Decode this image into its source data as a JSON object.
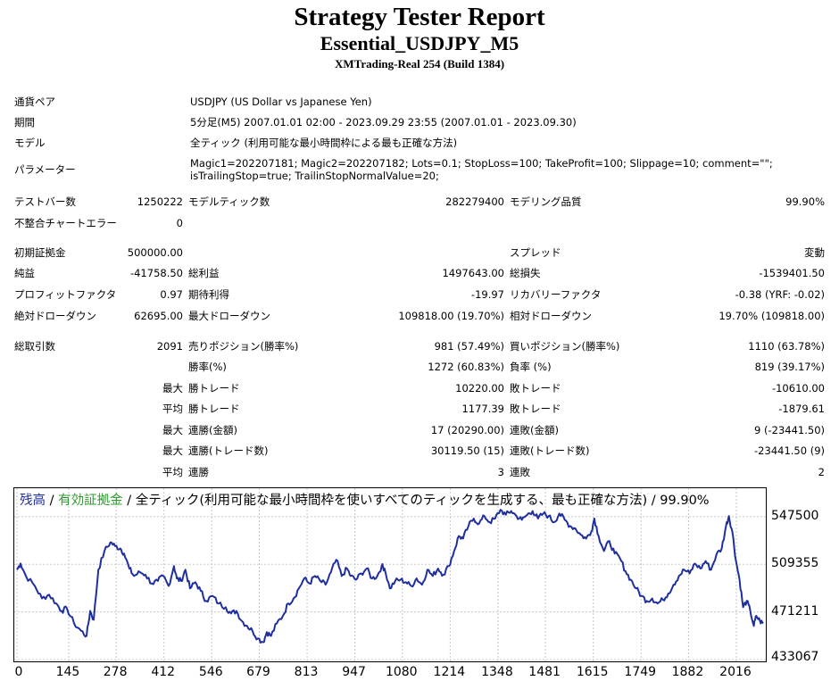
{
  "header": {
    "title": "Strategy Tester Report",
    "subtitle": "Essential_USDJPY_M5",
    "server": "XMTrading-Real 254 (Build 1384)"
  },
  "info": {
    "symbol_label": "通貨ペア",
    "symbol_value": "USDJPY (US Dollar vs Japanese Yen)",
    "period_label": "期間",
    "period_value": "5分足(M5) 2007.01.01 02:00 - 2023.09.29 23:55 (2007.01.01 - 2023.09.30)",
    "model_label": "モデル",
    "model_value": "全ティック (利用可能な最小時間枠による最も正確な方法)",
    "params_label": "パラメーター",
    "params_value": "Magic1=202207181; Magic2=202207182; Lots=0.1; StopLoss=100; TakeProfit=100; Slippage=10; comment=\"\"; isTrailingStop=true; TrailinStopNormalValue=20;"
  },
  "stats": {
    "bars_label": "テストバー数",
    "bars_value": "1250222",
    "ticks_label": "モデルティック数",
    "ticks_value": "282279400",
    "quality_label": "モデリング品質",
    "quality_value": "99.90%",
    "errors_label": "不整合チャートエラー",
    "errors_value": "0",
    "deposit_label": "初期証拠金",
    "deposit_value": "500000.00",
    "spread_label": "スプレッド",
    "spread_value": "変動",
    "net_label": "純益",
    "net_value": "-41758.50",
    "gross_profit_label": "総利益",
    "gross_profit_value": "1497643.00",
    "gross_loss_label": "総損失",
    "gross_loss_value": "-1539401.50",
    "pf_label": "プロフィットファクタ",
    "pf_value": "0.97",
    "expected_label": "期待利得",
    "expected_value": "-19.97",
    "recovery_label": "リカバリーファクタ",
    "recovery_value": "-0.38 (YRF: -0.02)",
    "abs_dd_label": "絶対ドローダウン",
    "abs_dd_value": "62695.00",
    "max_dd_label": "最大ドローダウン",
    "max_dd_value": "109818.00 (19.70%)",
    "rel_dd_label": "相対ドローダウン",
    "rel_dd_value": "19.70% (109818.00)",
    "trades_label": "総取引数",
    "trades_value": "2091",
    "short_label": "売りポジション(勝率%)",
    "short_value": "981 (57.49%)",
    "long_label": "買いポジション(勝率%)",
    "long_value": "1110 (63.78%)",
    "win_rate_label": "勝率(%)",
    "win_rate_value": "1272 (60.83%)",
    "loss_rate_label": "負率 (%)",
    "loss_rate_value": "819 (39.17%)",
    "max_prefix": "最大",
    "avg_prefix": "平均",
    "max_win_label": "勝トレード",
    "max_win_value": "10220.00",
    "max_loss_label": "敗トレード",
    "max_loss_value": "-10610.00",
    "avg_win_label": "勝トレード",
    "avg_win_value": "1177.39",
    "avg_loss_label": "敗トレード",
    "avg_loss_value": "-1879.61",
    "cons_wins_money_label": "連勝(金額)",
    "cons_wins_money_value": "17 (20290.00)",
    "cons_loss_money_label": "連敗(金額)",
    "cons_loss_money_value": "9 (-23441.50)",
    "cons_profit_label": "連勝(トレード数)",
    "cons_profit_value": "30119.50 (15)",
    "cons_loss_trades_label": "連敗(トレード数)",
    "cons_loss_trades_value": "-23441.50 (9)",
    "avg_cons_wins_label": "連勝",
    "avg_cons_wins_value": "3",
    "avg_cons_losses_label": "連敗",
    "avg_cons_losses_value": "2"
  },
  "chart_data": {
    "type": "line",
    "legend": {
      "balance": "残高",
      "sep1": " / ",
      "equity": "有効証拠金",
      "sep2": " / ",
      "rest": "全ティック(利用可能な最小時間枠を使いすべてのティックを生成する、最も正確な方法) / 99.90%"
    },
    "colors": {
      "balance": "#1f2f9f",
      "equity": "#2e9a2e",
      "grid": "#c8c8c8"
    },
    "xlim": [
      0,
      2091
    ],
    "ylim": [
      433067,
      566000
    ],
    "yticks": [
      547500,
      509355,
      471211,
      433067
    ],
    "xticks": [
      0,
      145,
      278,
      412,
      546,
      679,
      813,
      947,
      1080,
      1214,
      1348,
      1481,
      1615,
      1749,
      1882,
      2016
    ],
    "grid": true,
    "series": [
      {
        "values": [
          [
            0,
            505000
          ],
          [
            10,
            510000
          ],
          [
            25,
            500000
          ],
          [
            50,
            492000
          ],
          [
            70,
            482000
          ],
          [
            90,
            485000
          ],
          [
            110,
            478000
          ],
          [
            125,
            472000
          ],
          [
            140,
            474000
          ],
          [
            160,
            462000
          ],
          [
            180,
            456000
          ],
          [
            195,
            452000
          ],
          [
            205,
            472000
          ],
          [
            215,
            465000
          ],
          [
            228,
            505000
          ],
          [
            245,
            520000
          ],
          [
            262,
            527000
          ],
          [
            275,
            524000
          ],
          [
            290,
            522000
          ],
          [
            300,
            518000
          ],
          [
            315,
            506000
          ],
          [
            328,
            500000
          ],
          [
            345,
            503000
          ],
          [
            360,
            501000
          ],
          [
            378,
            494000
          ],
          [
            395,
            496000
          ],
          [
            410,
            500000
          ],
          [
            425,
            492000
          ],
          [
            440,
            508000
          ],
          [
            448,
            498000
          ],
          [
            460,
            496000
          ],
          [
            472,
            505000
          ],
          [
            485,
            490000
          ],
          [
            500,
            495000
          ],
          [
            515,
            488000
          ],
          [
            530,
            480000
          ],
          [
            548,
            484000
          ],
          [
            565,
            478000
          ],
          [
            585,
            475000
          ],
          [
            600,
            470000
          ],
          [
            615,
            472000
          ],
          [
            630,
            464000
          ],
          [
            645,
            460000
          ],
          [
            660,
            456000
          ],
          [
            675,
            450000
          ],
          [
            690,
            447000
          ],
          [
            700,
            455000
          ],
          [
            712,
            452000
          ],
          [
            728,
            462000
          ],
          [
            745,
            468000
          ],
          [
            760,
            478000
          ],
          [
            775,
            482000
          ],
          [
            790,
            490000
          ],
          [
            805,
            498000
          ],
          [
            820,
            494000
          ],
          [
            835,
            500000
          ],
          [
            850,
            496000
          ],
          [
            865,
            493000
          ],
          [
            880,
            503000
          ],
          [
            895,
            513000
          ],
          [
            910,
            500000
          ],
          [
            925,
            506000
          ],
          [
            935,
            500000
          ],
          [
            950,
            497000
          ],
          [
            965,
            502000
          ],
          [
            980,
            506000
          ],
          [
            995,
            498000
          ],
          [
            1010,
            500000
          ],
          [
            1022,
            508000
          ],
          [
            1030,
            506000
          ],
          [
            1045,
            490000
          ],
          [
            1060,
            496000
          ],
          [
            1075,
            497000
          ],
          [
            1090,
            495000
          ],
          [
            1105,
            492000
          ],
          [
            1120,
            498000
          ],
          [
            1135,
            493000
          ],
          [
            1150,
            505000
          ],
          [
            1165,
            500000
          ],
          [
            1180,
            506000
          ],
          [
            1195,
            501000
          ],
          [
            1210,
            508000
          ],
          [
            1225,
            520000
          ],
          [
            1238,
            532000
          ],
          [
            1250,
            530000
          ],
          [
            1265,
            540000
          ],
          [
            1280,
            546000
          ],
          [
            1295,
            542000
          ],
          [
            1310,
            548000
          ],
          [
            1325,
            543000
          ],
          [
            1340,
            546000
          ],
          [
            1355,
            553000
          ],
          [
            1370,
            549000
          ],
          [
            1385,
            552000
          ],
          [
            1400,
            548000
          ],
          [
            1415,
            545000
          ],
          [
            1430,
            549000
          ],
          [
            1445,
            552000
          ],
          [
            1460,
            546000
          ],
          [
            1475,
            550000
          ],
          [
            1490,
            548000
          ],
          [
            1505,
            543000
          ],
          [
            1520,
            550000
          ],
          [
            1535,
            545000
          ],
          [
            1550,
            540000
          ],
          [
            1565,
            538000
          ],
          [
            1580,
            533000
          ],
          [
            1595,
            530000
          ],
          [
            1610,
            536000
          ],
          [
            1618,
            546000
          ],
          [
            1630,
            532000
          ],
          [
            1645,
            520000
          ],
          [
            1660,
            528000
          ],
          [
            1675,
            518000
          ],
          [
            1690,
            514000
          ],
          [
            1705,
            504000
          ],
          [
            1720,
            497000
          ],
          [
            1735,
            490000
          ],
          [
            1750,
            484000
          ],
          [
            1765,
            480000
          ],
          [
            1780,
            482000
          ],
          [
            1795,
            478000
          ],
          [
            1810,
            481000
          ],
          [
            1825,
            486000
          ],
          [
            1840,
            493000
          ],
          [
            1855,
            500000
          ],
          [
            1870,
            505000
          ],
          [
            1885,
            502000
          ],
          [
            1900,
            510000
          ],
          [
            1915,
            506000
          ],
          [
            1930,
            512000
          ],
          [
            1945,
            505000
          ],
          [
            1960,
            517000
          ],
          [
            1975,
            522000
          ],
          [
            1987,
            540000
          ],
          [
            1995,
            548000
          ],
          [
            2005,
            535000
          ],
          [
            2015,
            512000
          ],
          [
            2025,
            497000
          ],
          [
            2035,
            475000
          ],
          [
            2045,
            480000
          ],
          [
            2055,
            472000
          ],
          [
            2065,
            460000
          ],
          [
            2072,
            468000
          ],
          [
            2082,
            464000
          ],
          [
            2091,
            462000
          ]
        ]
      }
    ]
  }
}
